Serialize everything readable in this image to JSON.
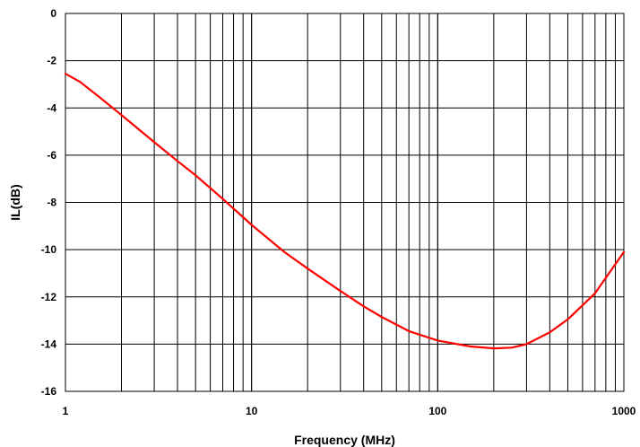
{
  "chart_data": {
    "type": "line",
    "title": "",
    "xlabel": "Frequency (MHz)",
    "ylabel": "IL(dB)",
    "xscale": "log",
    "xlim": [
      1,
      1000
    ],
    "ylim": [
      -16,
      0
    ],
    "x_tick_labels": [
      "1",
      "10",
      "100",
      "1000"
    ],
    "y_tick_labels": [
      "0",
      "-2",
      "-4",
      "-6",
      "-8",
      "-10",
      "-12",
      "-14",
      "-16"
    ],
    "x_ticks": [
      1,
      10,
      100,
      1000
    ],
    "y_ticks": [
      0,
      -2,
      -4,
      -6,
      -8,
      -10,
      -12,
      -14,
      -16
    ],
    "grid": true,
    "legend": "none",
    "series": [
      {
        "color": "#ff0000",
        "x": [
          1,
          1.2,
          1.5,
          2,
          3,
          4,
          5,
          7,
          10,
          15,
          20,
          30,
          40,
          50,
          70,
          100,
          150,
          200,
          250,
          300,
          400,
          500,
          700,
          1000
        ],
        "y": [
          -2.55,
          -2.9,
          -3.5,
          -4.3,
          -5.45,
          -6.25,
          -6.85,
          -7.85,
          -8.95,
          -10.1,
          -10.8,
          -11.75,
          -12.4,
          -12.85,
          -13.45,
          -13.85,
          -14.1,
          -14.18,
          -14.15,
          -14.0,
          -13.5,
          -12.95,
          -11.85,
          -10.1
        ]
      }
    ]
  }
}
